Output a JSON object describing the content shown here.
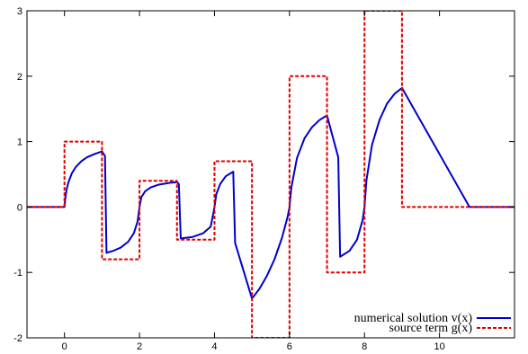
{
  "chart_data": {
    "type": "line",
    "title": "",
    "xlabel": "",
    "ylabel": "",
    "xlim": [
      -1,
      12
    ],
    "ylim": [
      -2,
      3
    ],
    "x_ticks": [
      0,
      2,
      4,
      6,
      8,
      10
    ],
    "x_tick_labels": [
      "0",
      "2",
      "4",
      "6",
      "8",
      "10"
    ],
    "y_ticks": [
      -2,
      -1,
      0,
      1,
      2,
      3
    ],
    "y_tick_labels": [
      "-2",
      "-1",
      "0",
      "1",
      "2",
      "3"
    ],
    "grid": false,
    "legend_position": "bottom-right",
    "series": [
      {
        "name": "numerical solution v(x)",
        "color": "#0000cc",
        "style": "solid",
        "points": [
          [
            -1,
            0
          ],
          [
            0,
            0
          ],
          [
            0.02,
            0.12
          ],
          [
            0.05,
            0.25
          ],
          [
            0.1,
            0.37
          ],
          [
            0.2,
            0.52
          ],
          [
            0.3,
            0.61
          ],
          [
            0.45,
            0.7
          ],
          [
            0.6,
            0.76
          ],
          [
            0.8,
            0.81
          ],
          [
            1.0,
            0.85
          ],
          [
            1.08,
            0.78
          ],
          [
            1.12,
            -0.7
          ],
          [
            1.3,
            -0.67
          ],
          [
            1.5,
            -0.62
          ],
          [
            1.7,
            -0.53
          ],
          [
            1.85,
            -0.4
          ],
          [
            1.95,
            -0.22
          ],
          [
            2.0,
            0.0
          ],
          [
            2.05,
            0.15
          ],
          [
            2.15,
            0.24
          ],
          [
            2.3,
            0.3
          ],
          [
            2.5,
            0.34
          ],
          [
            2.8,
            0.37
          ],
          [
            3.0,
            0.38
          ],
          [
            3.05,
            0.35
          ],
          [
            3.1,
            -0.48
          ],
          [
            3.4,
            -0.46
          ],
          [
            3.7,
            -0.4
          ],
          [
            3.9,
            -0.3
          ],
          [
            4.0,
            0.0
          ],
          [
            4.05,
            0.2
          ],
          [
            4.15,
            0.35
          ],
          [
            4.3,
            0.47
          ],
          [
            4.5,
            0.54
          ],
          [
            4.55,
            -0.55
          ],
          [
            5.0,
            -1.4
          ],
          [
            5.2,
            -1.25
          ],
          [
            5.4,
            -1.05
          ],
          [
            5.6,
            -0.8
          ],
          [
            5.8,
            -0.47
          ],
          [
            5.95,
            -0.15
          ],
          [
            6.0,
            0.0
          ],
          [
            6.05,
            0.3
          ],
          [
            6.2,
            0.75
          ],
          [
            6.4,
            1.05
          ],
          [
            6.6,
            1.22
          ],
          [
            6.8,
            1.33
          ],
          [
            7.0,
            1.4
          ],
          [
            7.3,
            0.76
          ],
          [
            7.35,
            -0.76
          ],
          [
            7.6,
            -0.67
          ],
          [
            7.8,
            -0.5
          ],
          [
            7.95,
            -0.2
          ],
          [
            8.0,
            0.0
          ],
          [
            8.05,
            0.4
          ],
          [
            8.2,
            0.95
          ],
          [
            8.4,
            1.33
          ],
          [
            8.6,
            1.58
          ],
          [
            8.8,
            1.73
          ],
          [
            9.0,
            1.82
          ],
          [
            10.8,
            0.0
          ],
          [
            12,
            0.0
          ]
        ]
      },
      {
        "name": "source term g(x)",
        "color": "#dd0000",
        "style": "dashed",
        "points": [
          [
            -1,
            0
          ],
          [
            0,
            0
          ],
          [
            0,
            1
          ],
          [
            1,
            1
          ],
          [
            1,
            -0.8
          ],
          [
            2,
            -0.8
          ],
          [
            2,
            0.4
          ],
          [
            3,
            0.4
          ],
          [
            3,
            -0.5
          ],
          [
            4,
            -0.5
          ],
          [
            4,
            0.7
          ],
          [
            5,
            0.7
          ],
          [
            5,
            -2.0
          ],
          [
            6,
            -2.0
          ],
          [
            6,
            2.0
          ],
          [
            7,
            2.0
          ],
          [
            7,
            -1.0
          ],
          [
            8,
            -1.0
          ],
          [
            8,
            3.0
          ],
          [
            9,
            3.0
          ],
          [
            9,
            0.0
          ],
          [
            12,
            0.0
          ]
        ]
      }
    ]
  }
}
